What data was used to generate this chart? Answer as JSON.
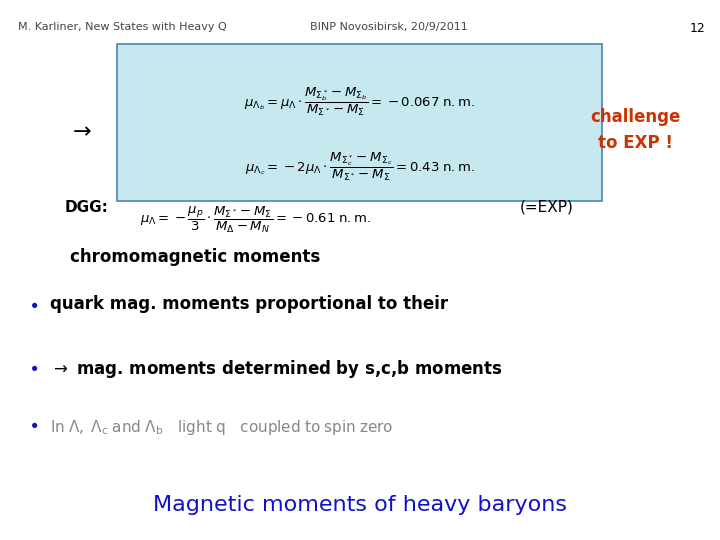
{
  "title": "Magnetic moments of heavy baryons",
  "title_color": "#1111CC",
  "title_fontsize": 16,
  "bg_color": "#FFFFFF",
  "bullet1_math": "In $\\Lambda$, $\\Lambda_c$ and $\\Lambda_b$ \\;\\; \\mathrm{light\\; q}$ \\; coupled to spin zero",
  "bullet2_text": "$\\rightarrow$ mag. moments determined by s,c,b moments",
  "bullet3_text": "quark mag. moments proportional to their",
  "sub3_text": "chromomagnetic moments",
  "dgg_label": "DGG:",
  "dgg_formula": "$\\mu_\\Lambda = -\\dfrac{\\mu_p}{3} \\cdot \\dfrac{M_{\\Sigma^*} - M_{\\Sigma}}{M_{\\Delta} - M_N} = -0.61\\;\\mathrm{n.m.}$",
  "dgg_result": "(=EXP)",
  "box_formula1": "$\\mu_{\\Lambda_c} = -2\\mu_{\\Lambda} \\cdot \\dfrac{M_{\\Sigma^*_c} - M_{\\Sigma_c}}{M_{\\Sigma^*} - M_{\\Sigma}} = 0.43\\;\\mathrm{n.m.}$",
  "box_formula2": "$\\mu_{\\Lambda_b} = \\mu_{\\Lambda} \\cdot \\dfrac{M_{\\Sigma^*_b} - M_{\\Sigma_b}}{M_{\\Sigma^*} - M_{\\Sigma}} = -0.067\\;\\mathrm{n.m.}$",
  "challenge_text": "challenge\nto EXP !",
  "challenge_color": "#CC3300",
  "box_bg_color": "#C8E8F0",
  "box_edge_color": "#4488AA",
  "footer_left": "M. Karliner, New States with Heavy Q",
  "footer_right": "BINP Novosibirsk, 20/9/2011",
  "page_num": "12",
  "footer_color": "#444444",
  "footer_fontsize": 8,
  "bullet_color": "#1111CC",
  "text_color": "#000000",
  "gray_color": "#888888"
}
